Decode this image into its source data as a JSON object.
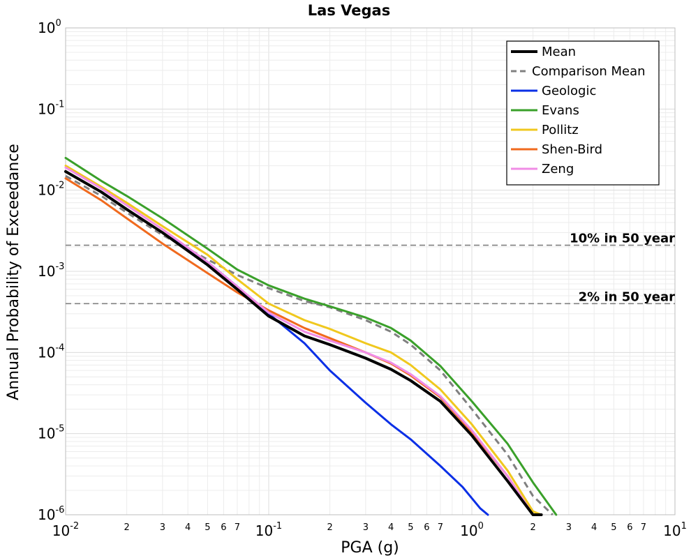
{
  "chart_data": {
    "type": "line",
    "title": "Las Vegas",
    "xlabel": "PGA (g)",
    "ylabel": "Annual Probability of Exceedance",
    "xscale": "log",
    "yscale": "log",
    "xlim": [
      0.01,
      10
    ],
    "ylim": [
      1e-06,
      1
    ],
    "grid": true,
    "legend_position": "top-right",
    "x_major_ticks": [
      {
        "value": 0.01,
        "base": "10",
        "exp": "-2"
      },
      {
        "value": 0.1,
        "base": "10",
        "exp": "-1"
      },
      {
        "value": 1,
        "base": "10",
        "exp": "0"
      },
      {
        "value": 10,
        "base": "10",
        "exp": "1"
      }
    ],
    "x_minor_ticks": [
      {
        "value": 0.02,
        "label": "2"
      },
      {
        "value": 0.03,
        "label": "3"
      },
      {
        "value": 0.04,
        "label": "4"
      },
      {
        "value": 0.05,
        "label": "5"
      },
      {
        "value": 0.06,
        "label": "6"
      },
      {
        "value": 0.07,
        "label": "7"
      },
      {
        "value": 0.2,
        "label": "2"
      },
      {
        "value": 0.3,
        "label": "3"
      },
      {
        "value": 0.4,
        "label": "4"
      },
      {
        "value": 0.5,
        "label": "5"
      },
      {
        "value": 0.6,
        "label": "6"
      },
      {
        "value": 0.7,
        "label": "7"
      },
      {
        "value": 2,
        "label": "2"
      },
      {
        "value": 3,
        "label": "3"
      },
      {
        "value": 4,
        "label": "4"
      },
      {
        "value": 5,
        "label": "5"
      },
      {
        "value": 6,
        "label": "6"
      },
      {
        "value": 7,
        "label": "7"
      }
    ],
    "y_major_ticks": [
      {
        "value": 1,
        "base": "10",
        "exp": "0"
      },
      {
        "value": 0.1,
        "base": "10",
        "exp": "-1"
      },
      {
        "value": 0.01,
        "base": "10",
        "exp": "-2"
      },
      {
        "value": 0.001,
        "base": "10",
        "exp": "-3"
      },
      {
        "value": 0.0001,
        "base": "10",
        "exp": "-4"
      },
      {
        "value": 1e-05,
        "base": "10",
        "exp": "-5"
      },
      {
        "value": 1e-06,
        "base": "10",
        "exp": "-6"
      }
    ],
    "reference_lines": [
      {
        "label": "10% in 50 year",
        "y": 0.0021,
        "color": "#808080"
      },
      {
        "label": "2% in 50 year",
        "y": 0.0004,
        "color": "#808080"
      }
    ],
    "series": [
      {
        "name": "Mean",
        "color": "#000000",
        "style": "solid",
        "width": 4,
        "x": [
          0.01,
          0.015,
          0.02,
          0.03,
          0.05,
          0.07,
          0.1,
          0.15,
          0.2,
          0.3,
          0.4,
          0.5,
          0.7,
          1.0,
          1.5,
          2.0,
          2.2
        ],
        "y": [
          0.017,
          0.0095,
          0.0058,
          0.003,
          0.0012,
          0.0006,
          0.00028,
          0.00016,
          0.000125,
          8.5e-05,
          6.2e-05,
          4.5e-05,
          2.5e-05,
          9.5e-06,
          2.6e-06,
          8e-07,
          6e-07
        ]
      },
      {
        "name": "Comparison Mean",
        "color": "#808080",
        "style": "dashed",
        "width": 3,
        "x": [
          0.01,
          0.015,
          0.02,
          0.03,
          0.05,
          0.07,
          0.1,
          0.15,
          0.2,
          0.3,
          0.4,
          0.5,
          0.7,
          1.0,
          1.5,
          2.0,
          2.5
        ],
        "y": [
          0.015,
          0.0085,
          0.0053,
          0.0028,
          0.0014,
          0.0009,
          0.00062,
          0.00043,
          0.00036,
          0.00025,
          0.00018,
          0.000125,
          6e-05,
          2e-05,
          5.5e-06,
          1.7e-06,
          6e-07
        ]
      },
      {
        "name": "Geologic",
        "color": "#0a2fe6",
        "style": "solid",
        "width": 3,
        "x": [
          0.01,
          0.015,
          0.02,
          0.03,
          0.05,
          0.07,
          0.1,
          0.15,
          0.2,
          0.3,
          0.4,
          0.5,
          0.7,
          0.9,
          1.1,
          1.2
        ],
        "y": [
          0.017,
          0.0095,
          0.0058,
          0.003,
          0.0013,
          0.00065,
          0.0003,
          0.00013,
          6e-05,
          2.4e-05,
          1.3e-05,
          8.5e-06,
          4e-06,
          2.2e-06,
          1.2e-06,
          8e-07
        ]
      },
      {
        "name": "Evans",
        "color": "#3aa02a",
        "style": "solid",
        "width": 3,
        "x": [
          0.01,
          0.015,
          0.02,
          0.03,
          0.05,
          0.07,
          0.1,
          0.15,
          0.2,
          0.3,
          0.4,
          0.5,
          0.7,
          1.0,
          1.5,
          2.0,
          2.6
        ],
        "y": [
          0.025,
          0.013,
          0.0085,
          0.0045,
          0.0019,
          0.00105,
          0.00067,
          0.00046,
          0.00037,
          0.00027,
          0.0002,
          0.00014,
          6.8e-05,
          2.5e-05,
          7.5e-06,
          2.5e-06,
          8e-07
        ]
      },
      {
        "name": "Pollitz",
        "color": "#f0c81e",
        "style": "solid",
        "width": 3,
        "x": [
          0.01,
          0.015,
          0.02,
          0.03,
          0.05,
          0.07,
          0.1,
          0.15,
          0.2,
          0.3,
          0.4,
          0.5,
          0.7,
          1.0,
          1.5,
          2.0,
          2.2
        ],
        "y": [
          0.02,
          0.011,
          0.007,
          0.0036,
          0.0016,
          0.0008,
          0.0004,
          0.00025,
          0.000195,
          0.00013,
          0.0001,
          7e-05,
          3.5e-05,
          1.3e-05,
          3.5e-06,
          1.1e-06,
          7e-07
        ]
      },
      {
        "name": "Shen-Bird",
        "color": "#f06a1e",
        "style": "solid",
        "width": 3,
        "x": [
          0.01,
          0.015,
          0.02,
          0.03,
          0.05,
          0.07,
          0.1,
          0.15,
          0.2,
          0.3,
          0.4,
          0.5,
          0.7,
          1.0,
          1.5,
          2.0,
          2.15
        ],
        "y": [
          0.014,
          0.0075,
          0.0045,
          0.0022,
          0.00095,
          0.00055,
          0.00033,
          0.0002,
          0.00015,
          0.0001,
          7.3e-05,
          5.2e-05,
          2.8e-05,
          1.05e-05,
          3e-06,
          9e-07,
          7e-07
        ]
      },
      {
        "name": "Zeng",
        "color": "#f08ce6",
        "style": "solid",
        "width": 3,
        "x": [
          0.01,
          0.015,
          0.02,
          0.03,
          0.05,
          0.07,
          0.1,
          0.15,
          0.2,
          0.3,
          0.4,
          0.5,
          0.7,
          1.0,
          1.5,
          2.0,
          2.2
        ],
        "y": [
          0.019,
          0.0105,
          0.0065,
          0.0033,
          0.0013,
          0.00065,
          0.00031,
          0.00018,
          0.00014,
          0.0001,
          7.5e-05,
          5.4e-05,
          2.9e-05,
          1.1e-05,
          3e-06,
          9e-07,
          6e-07
        ]
      }
    ]
  }
}
